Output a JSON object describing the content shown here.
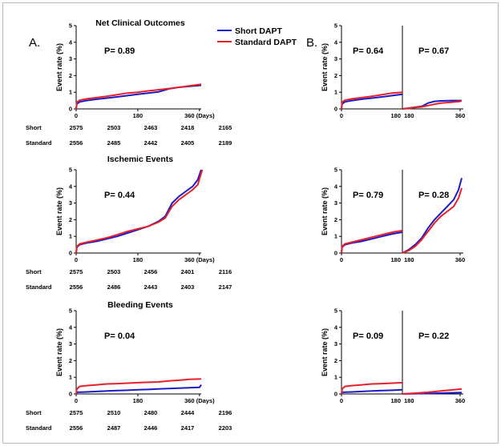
{
  "colors": {
    "short": "#1a1ac8",
    "standard": "#e8202a",
    "border": "#b8b8b8"
  },
  "panel_labels": {
    "a": "A.",
    "b": "B."
  },
  "legend": [
    {
      "label": "Short DAPT",
      "color": "#1a1ac8"
    },
    {
      "label": "Standard DAPT",
      "color": "#e8202a"
    }
  ],
  "risk_labels": {
    "short": "Short",
    "standard": "Standard"
  },
  "chart_data": [
    {
      "id": "net-a",
      "type": "line",
      "title": "Net Clinical Outcomes",
      "ylabel": "Event rate (%)",
      "xunit": "(Days)",
      "xticks": [
        "0",
        "180",
        "360"
      ],
      "yticks": [
        "0",
        "1",
        "2",
        "3",
        "4",
        "5"
      ],
      "xlim": [
        0,
        365
      ],
      "ylim": [
        0,
        5
      ],
      "pvalue": "P= 0.89",
      "series": [
        {
          "name": "Short DAPT",
          "x": [
            0,
            2,
            10,
            30,
            60,
            90,
            120,
            150,
            180,
            210,
            240,
            270,
            300,
            330,
            365
          ],
          "y": [
            0,
            0.3,
            0.42,
            0.5,
            0.58,
            0.65,
            0.72,
            0.8,
            0.88,
            0.95,
            1.02,
            1.2,
            1.3,
            1.35,
            1.42
          ]
        },
        {
          "name": "Standard DAPT",
          "x": [
            0,
            2,
            10,
            30,
            60,
            90,
            120,
            150,
            180,
            210,
            240,
            270,
            300,
            330,
            365
          ],
          "y": [
            0,
            0.4,
            0.52,
            0.6,
            0.68,
            0.76,
            0.85,
            0.95,
            1.0,
            1.08,
            1.15,
            1.22,
            1.3,
            1.38,
            1.48
          ]
        }
      ],
      "risk_table": {
        "short": [
          "2575",
          "2503",
          "2463",
          "2418",
          "2165"
        ],
        "standard": [
          "2556",
          "2485",
          "2442",
          "2405",
          "2189"
        ]
      }
    },
    {
      "id": "isch-a",
      "type": "line",
      "title": "Ischemic Events",
      "ylabel": "Event rate (%)",
      "xunit": "(Days)",
      "xticks": [
        "0",
        "180",
        "360"
      ],
      "yticks": [
        "0",
        "1",
        "2",
        "3",
        "4",
        "5"
      ],
      "xlim": [
        0,
        365
      ],
      "ylim": [
        0,
        5
      ],
      "pvalue": "P= 0.44",
      "series": [
        {
          "name": "Short DAPT",
          "x": [
            0,
            2,
            10,
            30,
            60,
            90,
            120,
            150,
            180,
            210,
            240,
            260,
            280,
            300,
            320,
            340,
            355,
            365
          ],
          "y": [
            0,
            0.35,
            0.5,
            0.6,
            0.7,
            0.85,
            1.0,
            1.2,
            1.4,
            1.6,
            1.9,
            2.2,
            3.0,
            3.4,
            3.7,
            4.0,
            4.4,
            5.0
          ]
        },
        {
          "name": "Standard DAPT",
          "x": [
            0,
            2,
            10,
            30,
            60,
            90,
            120,
            150,
            180,
            210,
            240,
            260,
            280,
            300,
            320,
            340,
            355,
            368
          ],
          "y": [
            0,
            0.4,
            0.55,
            0.65,
            0.78,
            0.92,
            1.1,
            1.3,
            1.45,
            1.6,
            1.85,
            2.1,
            2.8,
            3.2,
            3.5,
            3.8,
            4.1,
            5.0
          ]
        }
      ],
      "risk_table": {
        "short": [
          "2575",
          "2503",
          "2456",
          "2401",
          "2116"
        ],
        "standard": [
          "2556",
          "2486",
          "2443",
          "2403",
          "2147"
        ]
      }
    },
    {
      "id": "bleed-a",
      "type": "line",
      "title": "Bleeding Events",
      "ylabel": "Event rate (%)",
      "xunit": "(Days)",
      "xticks": [
        "0",
        "180",
        "360"
      ],
      "yticks": [
        "0",
        "1",
        "2",
        "3",
        "4",
        "5"
      ],
      "xlim": [
        0,
        365
      ],
      "ylim": [
        0,
        5
      ],
      "pvalue": "P= 0.04",
      "series": [
        {
          "name": "Short DAPT",
          "x": [
            0,
            2,
            30,
            60,
            90,
            120,
            150,
            180,
            210,
            240,
            270,
            300,
            330,
            360,
            365
          ],
          "y": [
            0,
            0.1,
            0.12,
            0.15,
            0.18,
            0.2,
            0.22,
            0.25,
            0.27,
            0.3,
            0.32,
            0.35,
            0.37,
            0.4,
            0.55
          ]
        },
        {
          "name": "Standard DAPT",
          "x": [
            0,
            2,
            10,
            30,
            60,
            90,
            120,
            150,
            180,
            210,
            240,
            270,
            300,
            330,
            365
          ],
          "y": [
            0,
            0.3,
            0.45,
            0.5,
            0.55,
            0.6,
            0.62,
            0.65,
            0.68,
            0.7,
            0.72,
            0.78,
            0.82,
            0.88,
            0.9
          ]
        }
      ],
      "risk_table": {
        "short": [
          "2575",
          "2510",
          "2480",
          "2444",
          "2196"
        ],
        "standard": [
          "2556",
          "2487",
          "2446",
          "2417",
          "2203"
        ]
      }
    },
    {
      "id": "net-b",
      "type": "line",
      "ylabel": "Event rate (%)",
      "yticks": [
        "0",
        "1",
        "2",
        "3",
        "4",
        "5"
      ],
      "ylim": [
        0,
        5
      ],
      "left": {
        "xlim": [
          0,
          180
        ],
        "xticks": [
          "0",
          "180"
        ],
        "pvalue": "P= 0.64",
        "series": [
          {
            "name": "Short DAPT",
            "x": [
              0,
              2,
              10,
              30,
              60,
              90,
              120,
              150,
              180
            ],
            "y": [
              0,
              0.3,
              0.42,
              0.5,
              0.58,
              0.65,
              0.72,
              0.8,
              0.88
            ]
          },
          {
            "name": "Standard DAPT",
            "x": [
              0,
              2,
              10,
              30,
              60,
              90,
              120,
              150,
              180
            ],
            "y": [
              0,
              0.4,
              0.52,
              0.6,
              0.68,
              0.76,
              0.85,
              0.95,
              1.0
            ]
          }
        ]
      },
      "right": {
        "xlim": [
          180,
          370
        ],
        "xticks": [
          "180",
          "360"
        ],
        "pvalue": "P= 0.67",
        "series": [
          {
            "name": "Short DAPT",
            "x": [
              180,
              200,
              220,
              240,
              260,
              280,
              300,
              330,
              360,
              365
            ],
            "y": [
              0,
              0.05,
              0.1,
              0.15,
              0.35,
              0.45,
              0.48,
              0.5,
              0.5,
              0.5
            ]
          },
          {
            "name": "Standard DAPT",
            "x": [
              180,
              200,
              220,
              240,
              260,
              280,
              300,
              330,
              360,
              365
            ],
            "y": [
              0,
              0.03,
              0.08,
              0.12,
              0.2,
              0.28,
              0.35,
              0.4,
              0.45,
              0.48
            ]
          }
        ]
      }
    },
    {
      "id": "isch-b",
      "type": "line",
      "ylabel": "Event rate (%)",
      "yticks": [
        "0",
        "1",
        "2",
        "3",
        "4",
        "5"
      ],
      "ylim": [
        0,
        5
      ],
      "left": {
        "xlim": [
          0,
          180
        ],
        "xticks": [
          "0",
          "180"
        ],
        "pvalue": "P= 0.79",
        "series": [
          {
            "name": "Short DAPT",
            "x": [
              0,
              2,
              10,
              30,
              60,
              90,
              120,
              150,
              180
            ],
            "y": [
              0,
              0.35,
              0.5,
              0.6,
              0.7,
              0.85,
              1.0,
              1.15,
              1.25
            ]
          },
          {
            "name": "Standard DAPT",
            "x": [
              0,
              2,
              10,
              30,
              60,
              90,
              120,
              150,
              180
            ],
            "y": [
              0,
              0.4,
              0.55,
              0.65,
              0.8,
              0.95,
              1.1,
              1.25,
              1.35
            ]
          }
        ]
      },
      "right": {
        "xlim": [
          180,
          370
        ],
        "xticks": [
          "180",
          "360"
        ],
        "pvalue": "P= 0.28",
        "series": [
          {
            "name": "Short DAPT",
            "x": [
              180,
              200,
              220,
              240,
              260,
              280,
              300,
              320,
              340,
              355,
              365
            ],
            "y": [
              0,
              0.2,
              0.5,
              0.9,
              1.5,
              2.0,
              2.4,
              2.8,
              3.2,
              3.8,
              4.5
            ]
          },
          {
            "name": "Standard DAPT",
            "x": [
              180,
              200,
              220,
              240,
              260,
              280,
              300,
              320,
              340,
              355,
              365
            ],
            "y": [
              0,
              0.15,
              0.4,
              0.8,
              1.3,
              1.8,
              2.2,
              2.5,
              2.8,
              3.3,
              3.9
            ]
          }
        ]
      }
    },
    {
      "id": "bleed-b",
      "type": "line",
      "ylabel": "Event rate (%)",
      "yticks": [
        "0",
        "1",
        "2",
        "3",
        "4",
        "5"
      ],
      "ylim": [
        0,
        5
      ],
      "left": {
        "xlim": [
          0,
          180
        ],
        "xticks": [
          "0",
          "180"
        ],
        "pvalue": "P= 0.09",
        "series": [
          {
            "name": "Short DAPT",
            "x": [
              0,
              2,
              30,
              60,
              90,
              120,
              150,
              180
            ],
            "y": [
              0,
              0.1,
              0.12,
              0.15,
              0.18,
              0.2,
              0.22,
              0.25
            ]
          },
          {
            "name": "Standard DAPT",
            "x": [
              0,
              2,
              10,
              30,
              60,
              90,
              120,
              150,
              180
            ],
            "y": [
              0,
              0.3,
              0.45,
              0.5,
              0.55,
              0.6,
              0.62,
              0.65,
              0.68
            ]
          }
        ]
      },
      "right": {
        "xlim": [
          180,
          370
        ],
        "xticks": [
          "180",
          "360"
        ],
        "pvalue": "P= 0.22",
        "series": [
          {
            "name": "Short DAPT",
            "x": [
              180,
              220,
              260,
              300,
              340,
              365
            ],
            "y": [
              0,
              0.02,
              0.03,
              0.05,
              0.07,
              0.08
            ]
          },
          {
            "name": "Standard DAPT",
            "x": [
              180,
              220,
              260,
              300,
              340,
              365
            ],
            "y": [
              0,
              0.05,
              0.1,
              0.18,
              0.25,
              0.3
            ]
          }
        ]
      }
    }
  ]
}
